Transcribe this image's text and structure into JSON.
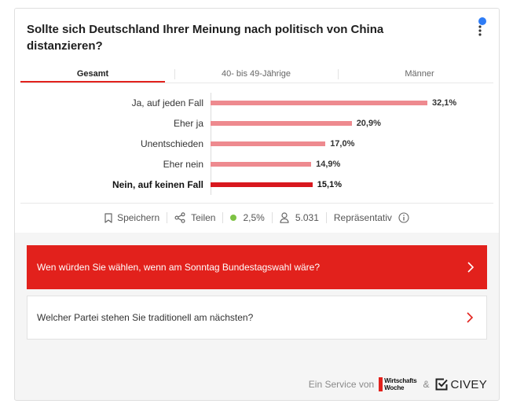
{
  "colors": {
    "accent_red": "#e2211c",
    "bar_light": "#ee8a8f",
    "bar_highlight": "#d8171e",
    "notification_blue": "#2e7cf6",
    "status_green": "#7dc243"
  },
  "poll": {
    "question": "Sollte sich Deutschland Ihrer Meinung nach politisch von China distanzieren?",
    "tabs": [
      {
        "label": "Gesamt",
        "active": true
      },
      {
        "label": "40- bis 49-Jährige",
        "active": false
      },
      {
        "label": "Männer",
        "active": false
      }
    ]
  },
  "icons": {
    "menu": "kebab-menu-icon",
    "save": "bookmark-icon",
    "share": "share-icon",
    "margin_indicator": "green-dot-icon",
    "participants": "person-icon",
    "info": "info-icon",
    "next": "chevron-right-icon",
    "brand": "civey-logo-icon"
  },
  "chart_data": {
    "type": "bar",
    "orientation": "horizontal",
    "categories": [
      "Ja, auf jeden Fall",
      "Eher ja",
      "Unentschieden",
      "Eher nein",
      "Nein, auf keinen Fall"
    ],
    "values": [
      32.1,
      20.9,
      17.0,
      14.9,
      15.1
    ],
    "value_labels": [
      "32,1%",
      "20,9%",
      "17,0%",
      "14,9%",
      "15,1%"
    ],
    "highlighted_index": 4,
    "grid": false
  },
  "actions": {
    "save_label": "Speichern",
    "share_label": "Teilen",
    "margin_of_error": "2,5%",
    "participants": "5.031",
    "representative_label": "Repräsentativ"
  },
  "related_questions": [
    {
      "text": "Wen würden Sie wählen, wenn am Sonntag Bundestagswahl wäre?"
    },
    {
      "text": "Welcher Partei stehen Sie traditionell am nächsten?"
    }
  ],
  "footer": {
    "service_label": "Ein Service von",
    "partner_logo_lines": [
      "Wirtschafts",
      "Woche"
    ],
    "ampersand": "&",
    "brand_logo": "CIVEY"
  }
}
